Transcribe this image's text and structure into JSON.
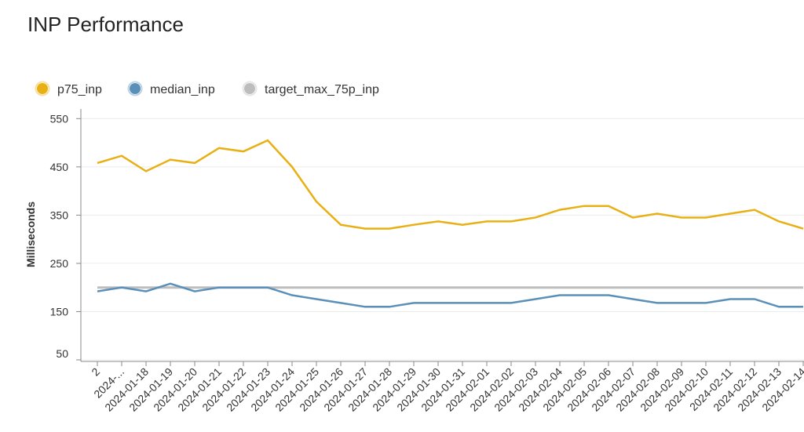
{
  "chart_data": {
    "type": "line",
    "title": "INP Performance",
    "y_label": "Milliseconds",
    "categories": [
      "2",
      "2024-...",
      "2024-01-18",
      "2024-01-19",
      "2024-01-20",
      "2024-01-21",
      "2024-01-22",
      "2024-01-23",
      "2024-01-24",
      "2024-01-25",
      "2024-01-26",
      "2024-01-27",
      "2024-01-28",
      "2024-01-29",
      "2024-01-30",
      "2024-01-31",
      "2024-02-01",
      "2024-02-02",
      "2024-02-03",
      "2024-02-04",
      "2024-02-05",
      "2024-02-06",
      "2024-02-07",
      "2024-02-08",
      "2024-02-09",
      "2024-02-10",
      "2024-02-11",
      "2024-02-12",
      "2024-02-13",
      "2024-02-14"
    ],
    "series": [
      {
        "name": "p75_inp",
        "color": "#e8b014",
        "values": [
          458,
          473,
          441,
          465,
          458,
          489,
          482,
          505,
          450,
          378,
          330,
          322,
          322,
          330,
          337,
          330,
          337,
          337,
          345,
          361,
          369,
          369,
          345,
          353,
          345,
          345,
          353,
          361,
          337,
          322
        ]
      },
      {
        "name": "median_inp",
        "color": "#5a8fb8",
        "values": [
          192,
          200,
          192,
          208,
          192,
          200,
          200,
          200,
          184,
          176,
          168,
          160,
          160,
          168,
          168,
          168,
          168,
          168,
          176,
          184,
          184,
          184,
          176,
          168,
          168,
          168,
          176,
          176,
          160,
          160
        ]
      },
      {
        "name": "target_max_75p_inp",
        "color": "#bdbdbd",
        "values": [
          200,
          200,
          200,
          200,
          200,
          200,
          200,
          200,
          200,
          200,
          200,
          200,
          200,
          200,
          200,
          200,
          200,
          200,
          200,
          200,
          200,
          200,
          200,
          200,
          200,
          200,
          200,
          200,
          200,
          200
        ]
      }
    ],
    "ylim": [
      50,
      570
    ],
    "yticks": [
      50,
      150,
      250,
      350,
      450,
      550
    ],
    "grid": true
  }
}
